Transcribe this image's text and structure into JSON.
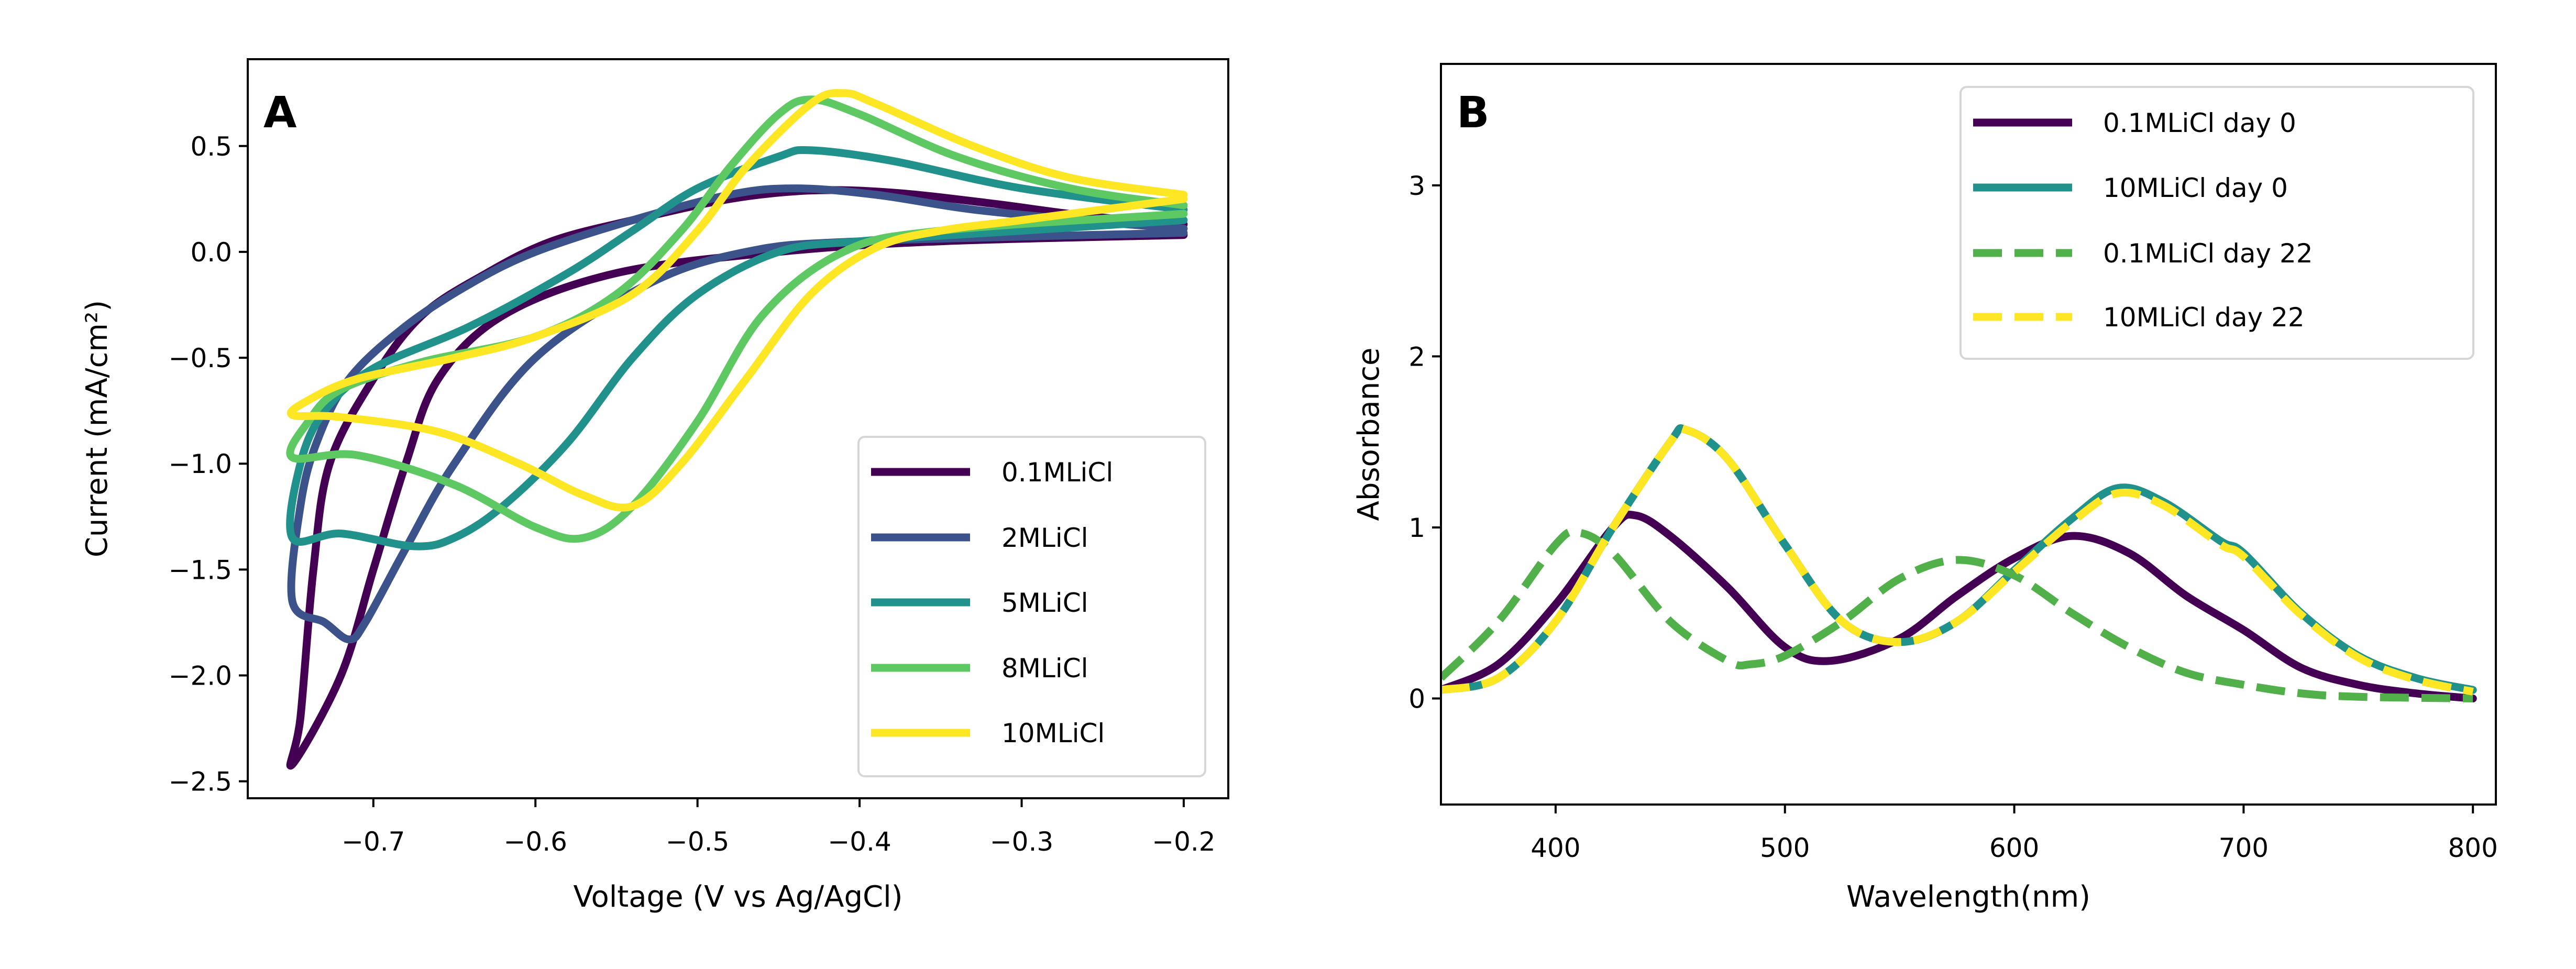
{
  "chart_data": [
    {
      "type": "line",
      "panel_label": "A",
      "xlabel": "Voltage (V vs Ag/AgCl)",
      "ylabel": "Current (mA/cm²)",
      "xlim": [
        -0.7775,
        -0.1725
      ],
      "ylim": [
        -2.58,
        0.91
      ],
      "xticks": [
        -0.7,
        -0.6,
        -0.5,
        -0.4,
        -0.3,
        -0.2
      ],
      "xtick_labels": [
        "−0.7",
        "−0.6",
        "−0.5",
        "−0.4",
        "−0.3",
        "−0.2"
      ],
      "yticks": [
        0.5,
        0.0,
        -0.5,
        -1.0,
        -1.5,
        -2.0,
        -2.5
      ],
      "ytick_labels": [
        "0.5",
        "0.0",
        "−0.5",
        "−1.0",
        "−1.5",
        "−2.0",
        "−2.5"
      ],
      "grid": false,
      "legend_placement": "lower-right",
      "series": [
        {
          "name": "0.1MLiCl",
          "color": "#440154",
          "style": "solid",
          "x": [
            -0.2,
            -0.35,
            -0.45,
            -0.55,
            -0.62,
            -0.66,
            -0.68,
            -0.7,
            -0.72,
            -0.75,
            -0.745,
            -0.737,
            -0.727,
            -0.7,
            -0.67,
            -0.63,
            -0.59,
            -0.54,
            -0.48,
            -0.43,
            -0.38,
            -0.32,
            -0.26,
            -0.2
          ],
          "y": [
            0.08,
            0.05,
            0.0,
            -0.1,
            -0.3,
            -0.6,
            -1.0,
            -1.5,
            -2.0,
            -2.42,
            -2.2,
            -1.5,
            -1.0,
            -0.6,
            -0.3,
            -0.1,
            0.05,
            0.15,
            0.25,
            0.29,
            0.28,
            0.23,
            0.17,
            0.13
          ]
        },
        {
          "name": "2MLiCl",
          "color": "#3b528b",
          "style": "solid",
          "x": [
            -0.2,
            -0.4,
            -0.47,
            -0.53,
            -0.6,
            -0.65,
            -0.68,
            -0.705,
            -0.715,
            -0.73,
            -0.75,
            -0.745,
            -0.735,
            -0.715,
            -0.68,
            -0.64,
            -0.6,
            -0.54,
            -0.48,
            -0.44,
            -0.39,
            -0.33,
            -0.25,
            -0.2
          ],
          "y": [
            0.09,
            0.05,
            0.0,
            -0.15,
            -0.5,
            -1.0,
            -1.4,
            -1.75,
            -1.83,
            -1.75,
            -1.65,
            -1.2,
            -0.9,
            -0.6,
            -0.35,
            -0.15,
            0.0,
            0.15,
            0.27,
            0.3,
            0.27,
            0.2,
            0.14,
            0.11
          ]
        },
        {
          "name": "5MLiCl",
          "color": "#21918c",
          "style": "solid",
          "x": [
            -0.2,
            -0.3,
            -0.4,
            -0.45,
            -0.5,
            -0.54,
            -0.58,
            -0.62,
            -0.65,
            -0.675,
            -0.72,
            -0.75,
            -0.745,
            -0.73,
            -0.7,
            -0.64,
            -0.58,
            -0.54,
            -0.5,
            -0.45,
            -0.43,
            -0.38,
            -0.3,
            -0.2
          ],
          "y": [
            0.15,
            0.1,
            0.05,
            0.0,
            -0.2,
            -0.5,
            -0.9,
            -1.2,
            -1.35,
            -1.39,
            -1.33,
            -1.35,
            -1.0,
            -0.75,
            -0.55,
            -0.35,
            -0.1,
            0.1,
            0.3,
            0.45,
            0.48,
            0.43,
            0.3,
            0.2
          ]
        },
        {
          "name": "8MLiCl",
          "color": "#5ec962",
          "style": "solid",
          "x": [
            -0.2,
            -0.35,
            -0.41,
            -0.46,
            -0.5,
            -0.54,
            -0.57,
            -0.6,
            -0.65,
            -0.71,
            -0.75,
            -0.74,
            -0.72,
            -0.67,
            -0.6,
            -0.55,
            -0.51,
            -0.48,
            -0.45,
            -0.43,
            -0.4,
            -0.34,
            -0.27,
            -0.2
          ],
          "y": [
            0.18,
            0.1,
            0.0,
            -0.3,
            -0.8,
            -1.2,
            -1.35,
            -1.3,
            -1.1,
            -0.96,
            -0.97,
            -0.8,
            -0.65,
            -0.52,
            -0.4,
            -0.2,
            0.1,
            0.4,
            0.65,
            0.72,
            0.65,
            0.45,
            0.3,
            0.22
          ]
        },
        {
          "name": "10MLiCl",
          "color": "#fde725",
          "style": "solid",
          "x": [
            -0.2,
            -0.3,
            -0.35,
            -0.39,
            -0.43,
            -0.47,
            -0.51,
            -0.54,
            -0.57,
            -0.61,
            -0.66,
            -0.72,
            -0.75,
            -0.74,
            -0.71,
            -0.65,
            -0.6,
            -0.54,
            -0.5,
            -0.47,
            -0.43,
            -0.41,
            -0.39,
            -0.33,
            -0.27,
            -0.2
          ],
          "y": [
            0.25,
            0.15,
            0.1,
            0.02,
            -0.2,
            -0.6,
            -1.0,
            -1.2,
            -1.15,
            -1.0,
            -0.85,
            -0.78,
            -0.77,
            -0.7,
            -0.6,
            -0.5,
            -0.4,
            -0.2,
            0.1,
            0.4,
            0.7,
            0.75,
            0.7,
            0.5,
            0.35,
            0.27
          ]
        }
      ]
    },
    {
      "type": "line",
      "panel_label": "B",
      "xlabel": "Wavelength(nm)",
      "ylabel": "Absorbance",
      "xlim": [
        350,
        810
      ],
      "ylim": [
        -0.62,
        3.71
      ],
      "xticks": [
        400,
        500,
        600,
        700,
        800
      ],
      "xtick_labels": [
        "400",
        "500",
        "600",
        "700",
        "800"
      ],
      "yticks": [
        0,
        1,
        2,
        3
      ],
      "ytick_labels": [
        "0",
        "1",
        "2",
        "3"
      ],
      "grid": false,
      "legend_placement": "upper-right",
      "series": [
        {
          "name": "0.1MLiCl day 0",
          "color": "#440154",
          "style": "solid",
          "x": [
            350,
            375,
            400,
            425,
            435,
            450,
            475,
            500,
            520,
            550,
            575,
            600,
            625,
            650,
            675,
            700,
            725,
            750,
            775,
            800
          ],
          "y": [
            0.05,
            0.2,
            0.55,
            1.0,
            1.07,
            0.95,
            0.65,
            0.3,
            0.22,
            0.35,
            0.6,
            0.82,
            0.95,
            0.85,
            0.6,
            0.4,
            0.18,
            0.08,
            0.03,
            0.0
          ]
        },
        {
          "name": "10MLiCl day 0",
          "color": "#21918c",
          "style": "solid",
          "x": [
            350,
            375,
            400,
            425,
            450,
            457,
            475,
            500,
            525,
            550,
            575,
            600,
            625,
            645,
            665,
            690,
            700,
            725,
            750,
            775,
            800
          ],
          "y": [
            0.05,
            0.12,
            0.45,
            1.0,
            1.5,
            1.57,
            1.4,
            0.9,
            0.45,
            0.33,
            0.45,
            0.75,
            1.05,
            1.23,
            1.15,
            0.92,
            0.85,
            0.5,
            0.25,
            0.12,
            0.05
          ]
        },
        {
          "name": "0.1MLiCl day 22",
          "color": "#52b04a",
          "style": "dashed",
          "x": [
            350,
            375,
            400,
            410,
            425,
            450,
            475,
            485,
            500,
            525,
            550,
            575,
            600,
            625,
            650,
            675,
            700,
            725,
            750,
            800
          ],
          "y": [
            0.12,
            0.45,
            0.9,
            0.97,
            0.85,
            0.45,
            0.22,
            0.2,
            0.25,
            0.45,
            0.7,
            0.81,
            0.72,
            0.5,
            0.3,
            0.15,
            0.08,
            0.03,
            0.01,
            0.0
          ]
        },
        {
          "name": "10MLiCl day 22",
          "color": "#fde725",
          "style": "dashed",
          "x": [
            350,
            375,
            400,
            425,
            450,
            457,
            475,
            500,
            525,
            550,
            575,
            600,
            625,
            645,
            665,
            690,
            700,
            725,
            750,
            775,
            800
          ],
          "y": [
            0.05,
            0.12,
            0.45,
            1.0,
            1.5,
            1.57,
            1.4,
            0.9,
            0.45,
            0.33,
            0.45,
            0.74,
            1.03,
            1.2,
            1.13,
            0.9,
            0.83,
            0.49,
            0.24,
            0.11,
            0.04
          ]
        }
      ]
    }
  ]
}
